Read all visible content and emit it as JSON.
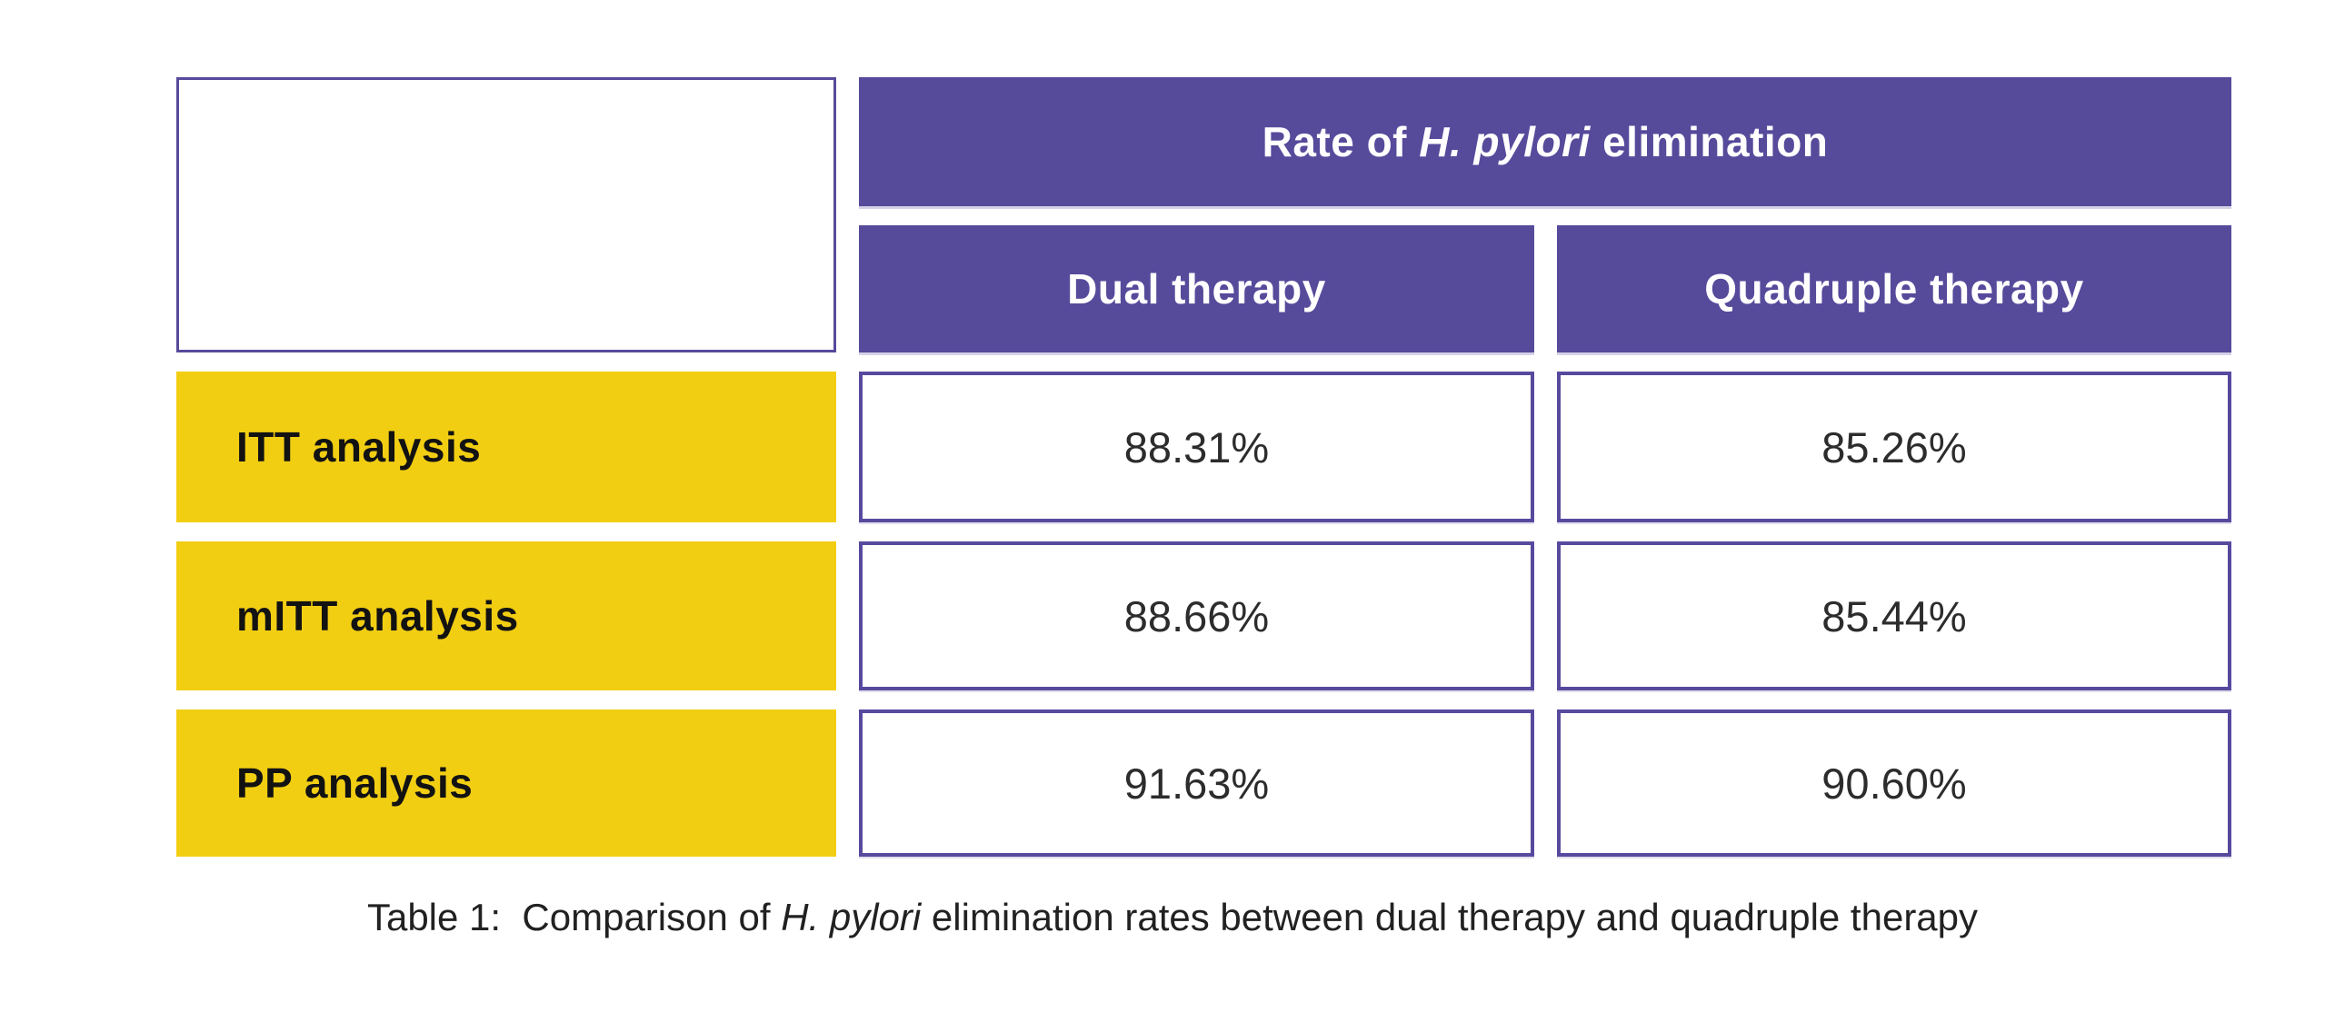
{
  "table": {
    "header": {
      "title_prefix": "Rate of ",
      "title_italic": "H. pylori",
      "title_suffix": " elimination",
      "columns": [
        "Dual therapy",
        "Quadruple therapy"
      ]
    },
    "rows": [
      {
        "label": "ITT analysis",
        "dual": "88.31%",
        "quadruple": "85.26%"
      },
      {
        "label": "mITT analysis",
        "dual": "88.66%",
        "quadruple": "85.44%"
      },
      {
        "label": "PP analysis",
        "dual": "91.63%",
        "quadruple": "90.60%"
      }
    ]
  },
  "caption": {
    "prefix": "Table 1:  Comparison of ",
    "italic": "H. pylori",
    "suffix": " elimination rates between dual therapy and quadruple therapy"
  },
  "colors": {
    "header_purple": "#564a9b",
    "cell_border_purple": "#574a9e",
    "row_label_yellow": "#f2ce13",
    "header_text": "#ffffff",
    "body_text": "#2c2c2c",
    "background": "#ffffff"
  },
  "chart_data": {
    "type": "table",
    "title": "Rate of H. pylori elimination",
    "caption": "Table 1: Comparison of H. pylori elimination rates between dual therapy and quadruple therapy",
    "row_labels": [
      "ITT analysis",
      "mITT analysis",
      "PP analysis"
    ],
    "columns": [
      "Dual therapy",
      "Quadruple therapy"
    ],
    "series": [
      {
        "name": "Dual therapy",
        "values": [
          88.31,
          88.66,
          91.63
        ]
      },
      {
        "name": "Quadruple therapy",
        "values": [
          85.26,
          85.44,
          90.6
        ]
      }
    ],
    "unit": "%"
  }
}
